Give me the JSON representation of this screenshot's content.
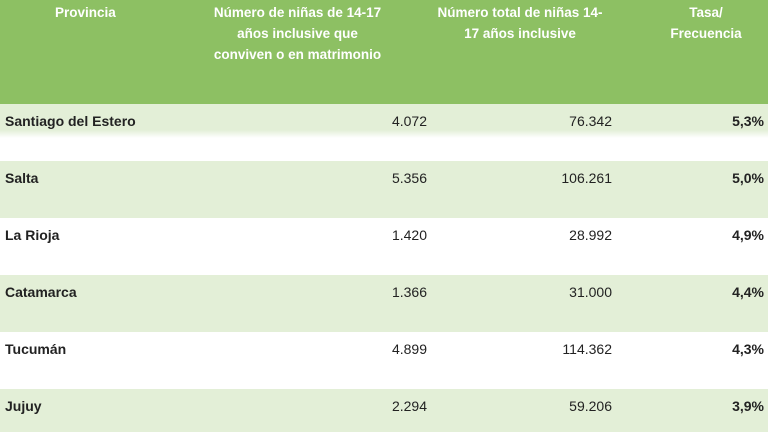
{
  "header": {
    "provincia": "Provincia",
    "numero_ninas": "Número de niñas de 14-17\naños inclusive que\nconviven o en matrimonio",
    "numero_total": "Número total de niñas 14-\n17 años inclusive",
    "tasa": "Tasa/\nFrecuencia"
  },
  "rows": [
    {
      "provincia": "Santiago del Estero",
      "numero": "4.072",
      "total": "76.342",
      "tasa": "5,3%"
    },
    {
      "provincia": "Salta",
      "numero": "5.356",
      "total": "106.261",
      "tasa": "5,0%"
    },
    {
      "provincia": "La Rioja",
      "numero": "1.420",
      "total": "28.992",
      "tasa": "4,9%"
    },
    {
      "provincia": "Catamarca",
      "numero": "1.366",
      "total": "31.000",
      "tasa": "4,4%"
    },
    {
      "provincia": "Tucumán",
      "numero": "4.899",
      "total": "114.362",
      "tasa": "4,3%"
    },
    {
      "provincia": "Jujuy",
      "numero": "2.294",
      "total": "59.206",
      "tasa": "3,9%"
    }
  ],
  "colors": {
    "header_bg": "#8dc063",
    "band_bg": "#e3efd7",
    "header_text": "#ffffff"
  }
}
